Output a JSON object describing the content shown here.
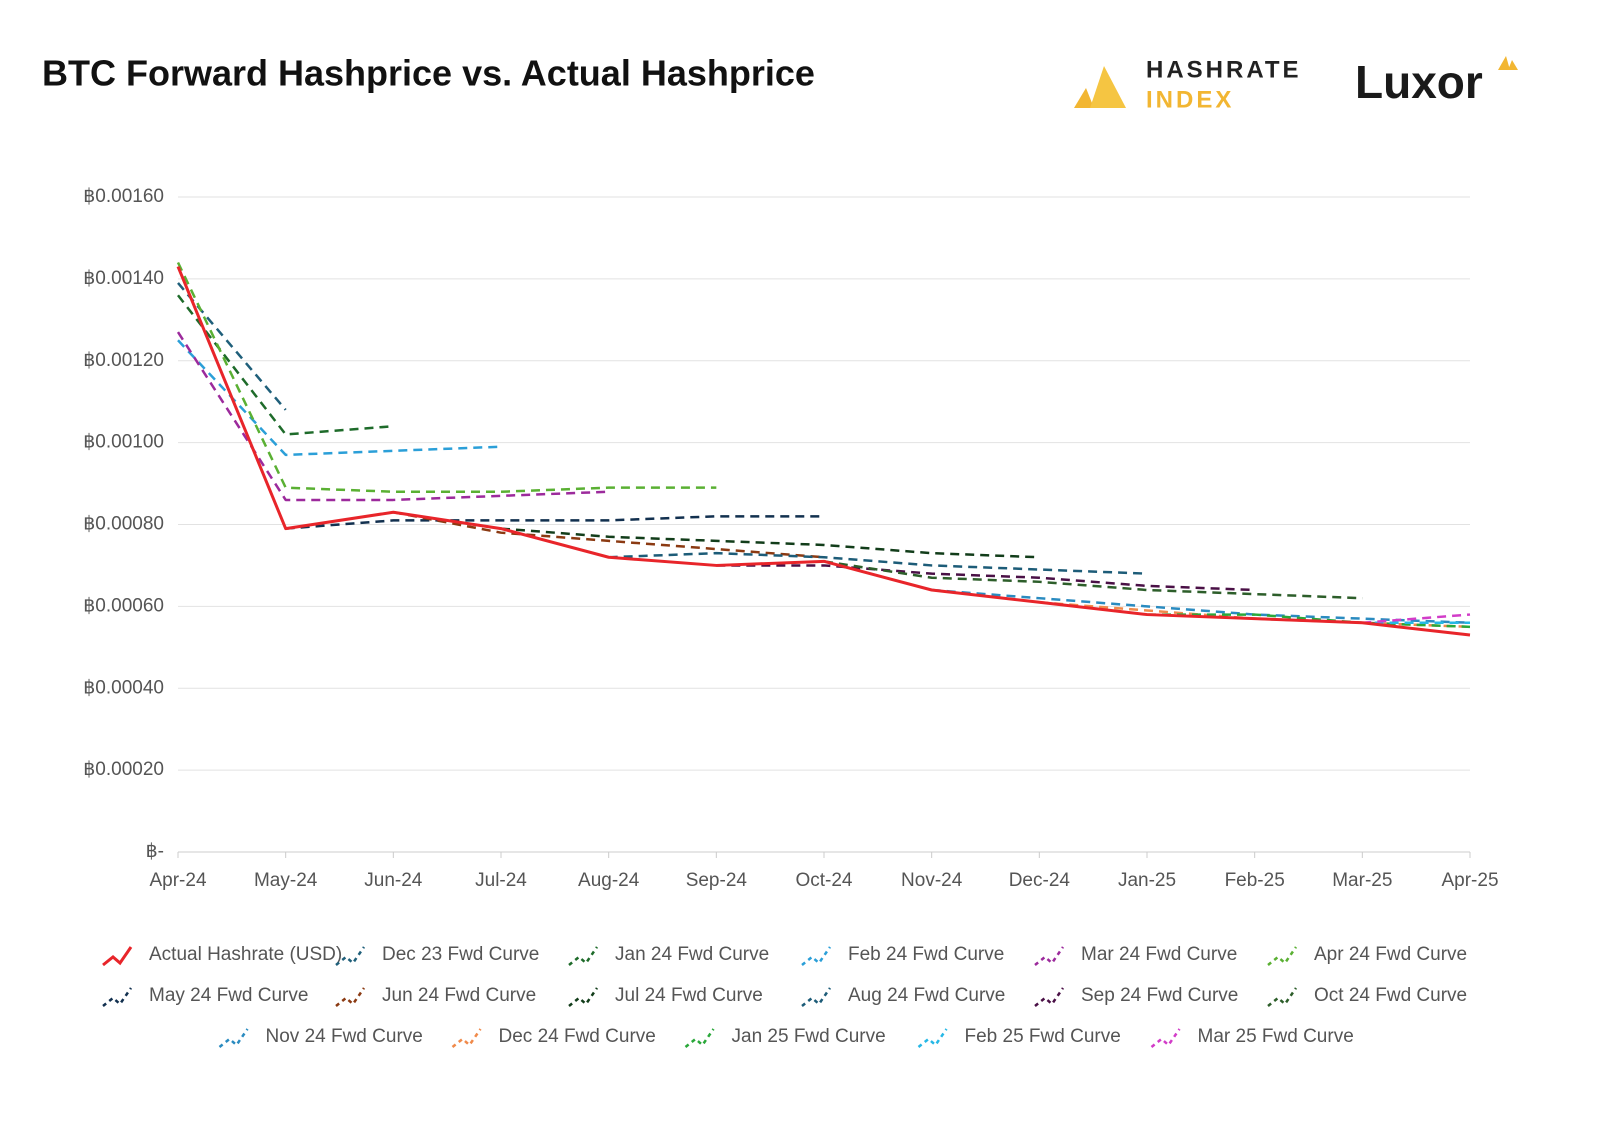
{
  "header": {
    "logo_top": "HASHRATE",
    "logo_bottom": "INDEX",
    "brand": "Luxor"
  },
  "chart_data": {
    "type": "line",
    "title": "BTC Forward Hashprice vs. Actual Hashprice",
    "categories": [
      "Apr-24",
      "May-24",
      "Jun-24",
      "Jul-24",
      "Aug-24",
      "Sep-24",
      "Oct-24",
      "Nov-24",
      "Dec-24",
      "Jan-25",
      "Feb-25",
      "Mar-25",
      "Apr-25"
    ],
    "ylim": [
      0,
      0.0016
    ],
    "yticks": [
      {
        "value": 0,
        "label": "฿-"
      },
      {
        "value": 0.0002,
        "label": "฿0.00020"
      },
      {
        "value": 0.0004,
        "label": "฿0.00040"
      },
      {
        "value": 0.0006,
        "label": "฿0.00060"
      },
      {
        "value": 0.0008,
        "label": "฿0.00080"
      },
      {
        "value": 0.001,
        "label": "฿0.00100"
      },
      {
        "value": 0.0012,
        "label": "฿0.00120"
      },
      {
        "value": 0.0014,
        "label": "฿0.00140"
      },
      {
        "value": 0.0016,
        "label": "฿0.00160"
      }
    ],
    "grid": true,
    "legend": "bottom",
    "series": [
      {
        "name": "Actual Hashrate (USD)",
        "color": "#e8252a",
        "dashed": false,
        "values": [
          0.00143,
          0.00079,
          0.00083,
          0.00079,
          0.00072,
          0.0007,
          0.00071,
          0.00064,
          0.00061,
          0.00058,
          0.00057,
          0.00056,
          0.00053
        ]
      },
      {
        "name": "Dec 23 Fwd Curve",
        "color": "#1f5f7a",
        "dashed": true,
        "values": [
          0.00139,
          0.00108,
          null,
          null,
          null,
          null,
          null,
          null,
          null,
          null,
          null,
          null,
          null
        ]
      },
      {
        "name": "Jan 24 Fwd Curve",
        "color": "#1e6b2a",
        "dashed": true,
        "values": [
          0.00136,
          0.00102,
          0.00104,
          null,
          null,
          null,
          null,
          null,
          null,
          null,
          null,
          null,
          null
        ]
      },
      {
        "name": "Feb 24 Fwd Curve",
        "color": "#2b9fd8",
        "dashed": true,
        "values": [
          0.00125,
          0.00097,
          0.00098,
          0.00099,
          null,
          null,
          null,
          null,
          null,
          null,
          null,
          null,
          null
        ]
      },
      {
        "name": "Mar 24 Fwd Curve",
        "color": "#9c2a9c",
        "dashed": true,
        "values": [
          0.00127,
          0.00086,
          0.00086,
          0.00087,
          0.00088,
          null,
          null,
          null,
          null,
          null,
          null,
          null,
          null
        ]
      },
      {
        "name": "Apr 24 Fwd Curve",
        "color": "#5ab033",
        "dashed": true,
        "values": [
          0.00144,
          0.00089,
          0.00088,
          0.00088,
          0.00089,
          0.00089,
          null,
          null,
          null,
          null,
          null,
          null,
          null
        ]
      },
      {
        "name": "May 24 Fwd Curve",
        "color": "#12304f",
        "dashed": true,
        "values": [
          null,
          0.00079,
          0.00081,
          0.00081,
          0.00081,
          0.00082,
          0.00082,
          null,
          null,
          null,
          null,
          null,
          null
        ]
      },
      {
        "name": "Jun 24 Fwd Curve",
        "color": "#8b3a12",
        "dashed": true,
        "values": [
          null,
          null,
          0.00083,
          0.00078,
          0.00076,
          0.00074,
          0.00072,
          null,
          null,
          null,
          null,
          null,
          null
        ]
      },
      {
        "name": "Jul 24 Fwd Curve",
        "color": "#123d1a",
        "dashed": true,
        "values": [
          null,
          null,
          null,
          0.00079,
          0.00077,
          0.00076,
          0.00075,
          0.00073,
          0.00072,
          null,
          null,
          null,
          null
        ]
      },
      {
        "name": "Aug 24 Fwd Curve",
        "color": "#1d5c78",
        "dashed": true,
        "values": [
          null,
          null,
          null,
          null,
          0.00072,
          0.00073,
          0.00072,
          0.0007,
          0.00069,
          0.00068,
          null,
          null,
          null
        ]
      },
      {
        "name": "Sep 24 Fwd Curve",
        "color": "#4a1046",
        "dashed": true,
        "values": [
          null,
          null,
          null,
          null,
          null,
          0.0007,
          0.0007,
          0.00068,
          0.00067,
          0.00065,
          0.00064,
          null,
          null
        ]
      },
      {
        "name": "Oct 24 Fwd Curve",
        "color": "#2d5e2a",
        "dashed": true,
        "values": [
          null,
          null,
          null,
          null,
          null,
          null,
          0.00071,
          0.00067,
          0.00066,
          0.00064,
          0.00063,
          0.00062,
          null
        ]
      },
      {
        "name": "Nov 24 Fwd Curve",
        "color": "#2a8bc0",
        "dashed": true,
        "values": [
          null,
          null,
          null,
          null,
          null,
          null,
          null,
          0.00064,
          0.00062,
          0.0006,
          0.00058,
          0.00057,
          0.00056
        ]
      },
      {
        "name": "Dec 24 Fwd Curve",
        "color": "#f08a4b",
        "dashed": true,
        "values": [
          null,
          null,
          null,
          null,
          null,
          null,
          null,
          null,
          0.00061,
          0.00059,
          0.00057,
          0.00056,
          0.00055
        ]
      },
      {
        "name": "Jan 25 Fwd Curve",
        "color": "#2aa83a",
        "dashed": true,
        "values": [
          null,
          null,
          null,
          null,
          null,
          null,
          null,
          null,
          null,
          0.00058,
          0.00058,
          0.00056,
          0.00055
        ]
      },
      {
        "name": "Feb 25 Fwd Curve",
        "color": "#26b8e6",
        "dashed": true,
        "values": [
          null,
          null,
          null,
          null,
          null,
          null,
          null,
          null,
          null,
          null,
          0.00057,
          0.00056,
          0.00056
        ]
      },
      {
        "name": "Mar 25 Fwd Curve",
        "color": "#d23cc8",
        "dashed": true,
        "values": [
          null,
          null,
          null,
          null,
          null,
          null,
          null,
          null,
          null,
          null,
          null,
          0.00056,
          0.00058
        ]
      }
    ]
  }
}
